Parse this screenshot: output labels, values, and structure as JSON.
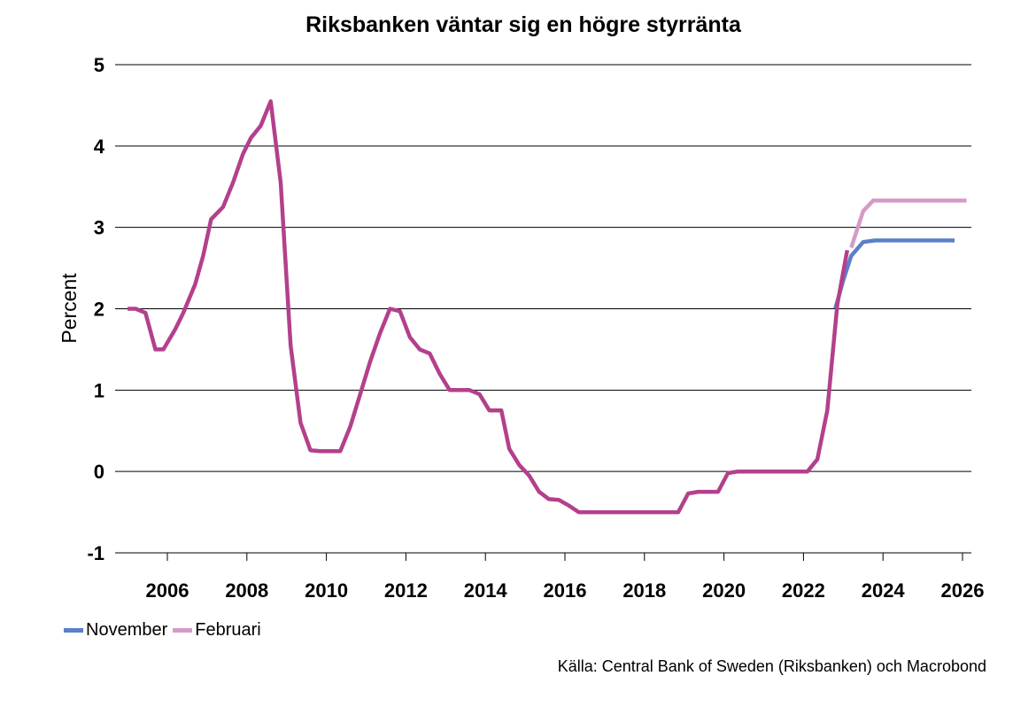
{
  "chart_data": {
    "type": "line",
    "title": "Riksbanken väntar sig en högre styrränta",
    "xlabel": "",
    "ylabel": "Percent",
    "xlim": [
      2004.8,
      2026.3
    ],
    "ylim": [
      -1,
      5
    ],
    "x_ticks": [
      2006,
      2008,
      2010,
      2012,
      2014,
      2016,
      2018,
      2020,
      2022,
      2024,
      2026
    ],
    "y_ticks": [
      -1,
      0,
      1,
      2,
      3,
      4,
      5
    ],
    "grid": "horizontal",
    "legend_position": "bottom-left",
    "series": [
      {
        "name": "November",
        "color": "#5b80c8",
        "points": [
          [
            2022.8,
            2.0
          ],
          [
            2023.0,
            2.35
          ],
          [
            2023.2,
            2.65
          ],
          [
            2023.5,
            2.82
          ],
          [
            2023.8,
            2.84
          ],
          [
            2024.5,
            2.84
          ],
          [
            2025.8,
            2.84
          ]
        ]
      },
      {
        "name": "Februari",
        "color": "#d59ac5",
        "points": [
          [
            2023.2,
            2.75
          ],
          [
            2023.5,
            3.2
          ],
          [
            2023.75,
            3.33
          ],
          [
            2024.5,
            3.33
          ],
          [
            2026.1,
            3.33
          ]
        ]
      },
      {
        "name": "",
        "color": "#b3408c",
        "points": [
          [
            2005.0,
            2.0
          ],
          [
            2005.2,
            2.0
          ],
          [
            2005.45,
            1.95
          ],
          [
            2005.7,
            1.5
          ],
          [
            2005.9,
            1.5
          ],
          [
            2006.2,
            1.75
          ],
          [
            2006.4,
            1.95
          ],
          [
            2006.7,
            2.3
          ],
          [
            2006.9,
            2.65
          ],
          [
            2007.1,
            3.1
          ],
          [
            2007.4,
            3.25
          ],
          [
            2007.65,
            3.55
          ],
          [
            2007.9,
            3.9
          ],
          [
            2008.1,
            4.1
          ],
          [
            2008.35,
            4.25
          ],
          [
            2008.6,
            4.55
          ],
          [
            2008.85,
            3.55
          ],
          [
            2009.1,
            1.55
          ],
          [
            2009.35,
            0.6
          ],
          [
            2009.6,
            0.26
          ],
          [
            2009.85,
            0.25
          ],
          [
            2010.1,
            0.25
          ],
          [
            2010.35,
            0.25
          ],
          [
            2010.6,
            0.55
          ],
          [
            2010.85,
            0.95
          ],
          [
            2011.1,
            1.35
          ],
          [
            2011.35,
            1.7
          ],
          [
            2011.6,
            2.0
          ],
          [
            2011.85,
            1.97
          ],
          [
            2012.1,
            1.65
          ],
          [
            2012.35,
            1.5
          ],
          [
            2012.6,
            1.45
          ],
          [
            2012.85,
            1.2
          ],
          [
            2013.1,
            1.0
          ],
          [
            2013.35,
            1.0
          ],
          [
            2013.6,
            1.0
          ],
          [
            2013.85,
            0.95
          ],
          [
            2014.1,
            0.75
          ],
          [
            2014.4,
            0.75
          ],
          [
            2014.6,
            0.28
          ],
          [
            2014.85,
            0.08
          ],
          [
            2015.1,
            -0.05
          ],
          [
            2015.35,
            -0.25
          ],
          [
            2015.6,
            -0.34
          ],
          [
            2015.85,
            -0.35
          ],
          [
            2016.1,
            -0.42
          ],
          [
            2016.35,
            -0.5
          ],
          [
            2016.6,
            -0.5
          ],
          [
            2017.0,
            -0.5
          ],
          [
            2017.5,
            -0.5
          ],
          [
            2018.0,
            -0.5
          ],
          [
            2018.5,
            -0.5
          ],
          [
            2018.85,
            -0.5
          ],
          [
            2019.1,
            -0.27
          ],
          [
            2019.35,
            -0.25
          ],
          [
            2019.6,
            -0.25
          ],
          [
            2019.85,
            -0.25
          ],
          [
            2020.1,
            -0.02
          ],
          [
            2020.35,
            0.0
          ],
          [
            2020.6,
            0.0
          ],
          [
            2021.0,
            0.0
          ],
          [
            2021.5,
            0.0
          ],
          [
            2022.1,
            0.0
          ],
          [
            2022.35,
            0.15
          ],
          [
            2022.6,
            0.75
          ],
          [
            2022.85,
            2.05
          ],
          [
            2023.1,
            2.72
          ]
        ]
      }
    ]
  },
  "source_text": "Källa: Central Bank of Sweden (Riksbanken) och Macrobond"
}
